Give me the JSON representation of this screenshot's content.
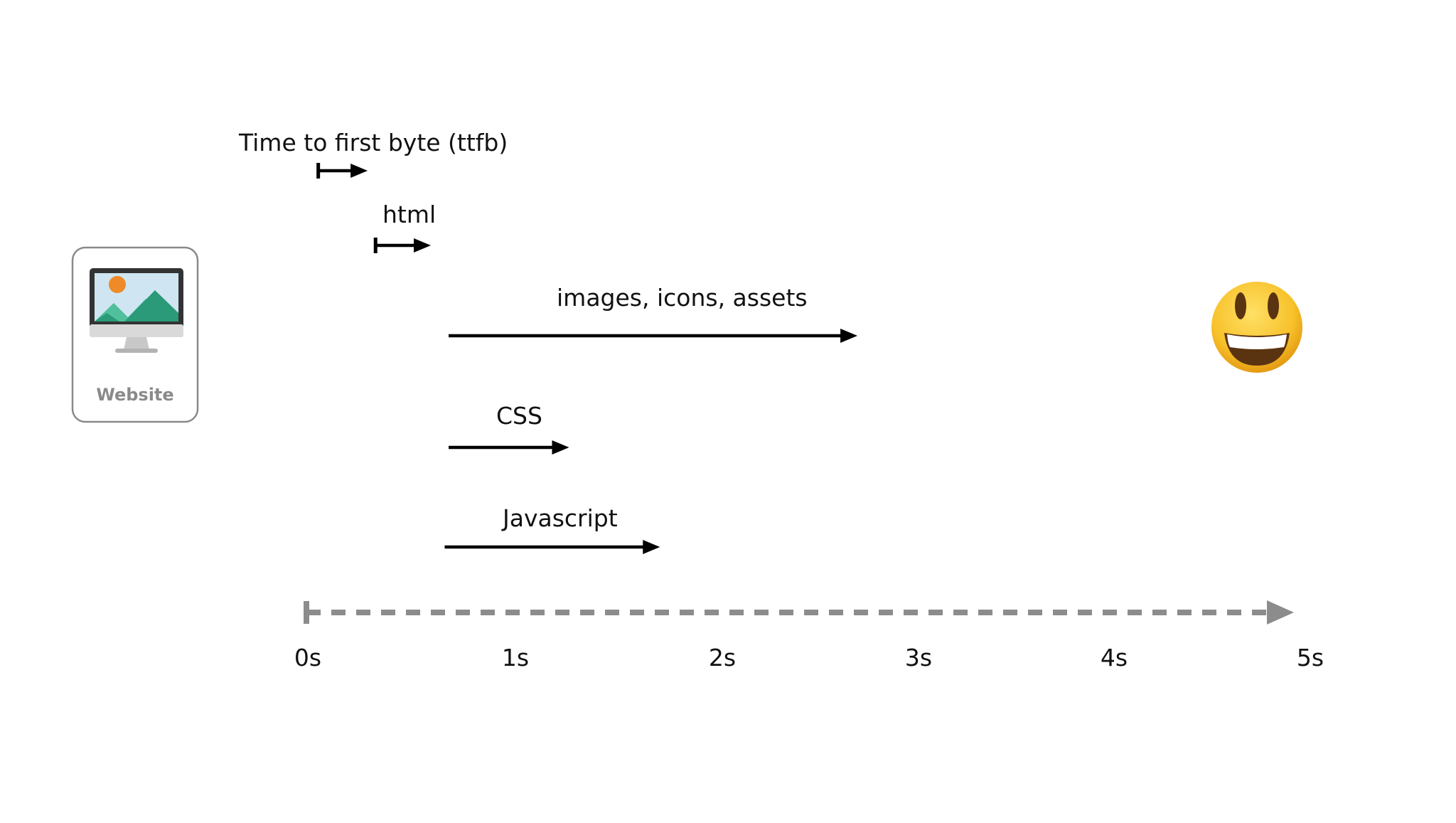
{
  "timeline": {
    "start_s": 0,
    "end_s": 5,
    "tick_labels": [
      "0s",
      "1s",
      "2s",
      "3s",
      "4s",
      "5s"
    ],
    "axis_color": "#8c8c8c",
    "arrow_color": "#000000"
  },
  "website_card": {
    "label": "Website",
    "icon": "desktop-monitor-landscape-icon",
    "border_color": "#8a8a8a",
    "screen_colors": {
      "sky": "#cfe6f2",
      "sun": "#ee8a27",
      "mountain_light": "#4fbf9c",
      "mountain_dark": "#2a9a78",
      "bezel": "#333333",
      "stand": "#c8c8c8"
    }
  },
  "resources": [
    {
      "id": "ttfb",
      "label": "Time to first byte (ttfb)",
      "start_s": 0.06,
      "end_s": 0.31
    },
    {
      "id": "html",
      "label": "html",
      "start_s": 0.35,
      "end_s": 0.63
    },
    {
      "id": "images",
      "label": "images, icons, assets",
      "start_s": 0.72,
      "end_s": 2.79
    },
    {
      "id": "css",
      "label": "CSS",
      "start_s": 0.72,
      "end_s": 1.33
    },
    {
      "id": "javascript",
      "label": "Javascript",
      "start_s": 0.7,
      "end_s": 1.79
    }
  ],
  "end_state": {
    "icon": "grinning-face-icon",
    "face_color": "#f7c12a"
  }
}
